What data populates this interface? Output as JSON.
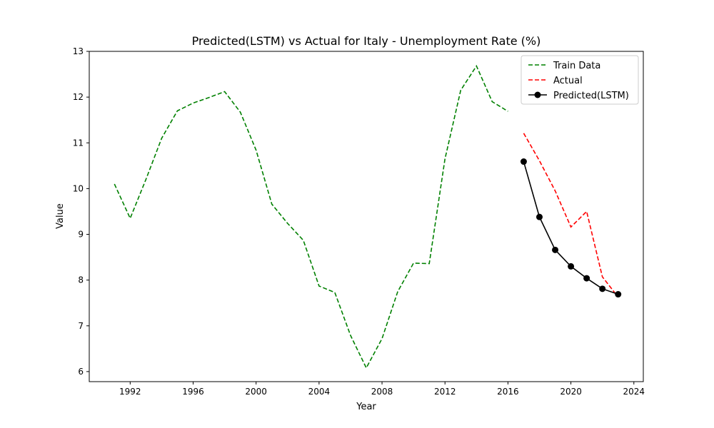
{
  "chart_data": {
    "type": "line",
    "title": "Predicted(LSTM) vs Actual for Italy - Unemployment Rate (%)",
    "xlabel": "Year",
    "ylabel": "Value",
    "xlim": [
      1989.4,
      2024.6
    ],
    "ylim": [
      5.78,
      13.0
    ],
    "xticks": [
      1992,
      1996,
      2000,
      2004,
      2008,
      2012,
      2016,
      2020,
      2024
    ],
    "yticks": [
      6,
      7,
      8,
      9,
      10,
      11,
      12,
      13
    ],
    "grid": false,
    "legend_position": "upper right",
    "series": [
      {
        "name": "Train Data",
        "color": "#008000",
        "style": "dashed",
        "marker": "none",
        "x": [
          1991,
          1992,
          1993,
          1994,
          1995,
          1996,
          1997,
          1998,
          1999,
          2000,
          2001,
          2002,
          2003,
          2004,
          2005,
          2006,
          2007,
          2008,
          2009,
          2010,
          2011,
          2012,
          2013,
          2014,
          2015,
          2016
        ],
        "y": [
          10.1,
          9.35,
          10.2,
          11.1,
          11.7,
          11.87,
          11.99,
          12.12,
          11.67,
          10.84,
          9.66,
          9.24,
          8.87,
          7.87,
          7.73,
          6.79,
          6.08,
          6.72,
          7.75,
          8.37,
          8.36,
          10.65,
          12.15,
          12.68,
          11.9,
          11.69
        ]
      },
      {
        "name": "Actual",
        "color": "#ff0000",
        "style": "dashed",
        "marker": "none",
        "x": [
          2017,
          2018,
          2019,
          2020,
          2021,
          2022,
          2023
        ],
        "y": [
          11.21,
          10.61,
          9.95,
          9.16,
          9.5,
          8.07,
          7.63
        ]
      },
      {
        "name": "Predicted(LSTM)",
        "color": "#000000",
        "style": "solid",
        "marker": "circle",
        "x": [
          2017,
          2018,
          2019,
          2020,
          2021,
          2022,
          2023
        ],
        "y": [
          10.59,
          9.38,
          8.66,
          8.3,
          8.04,
          7.81,
          7.69
        ]
      }
    ]
  }
}
